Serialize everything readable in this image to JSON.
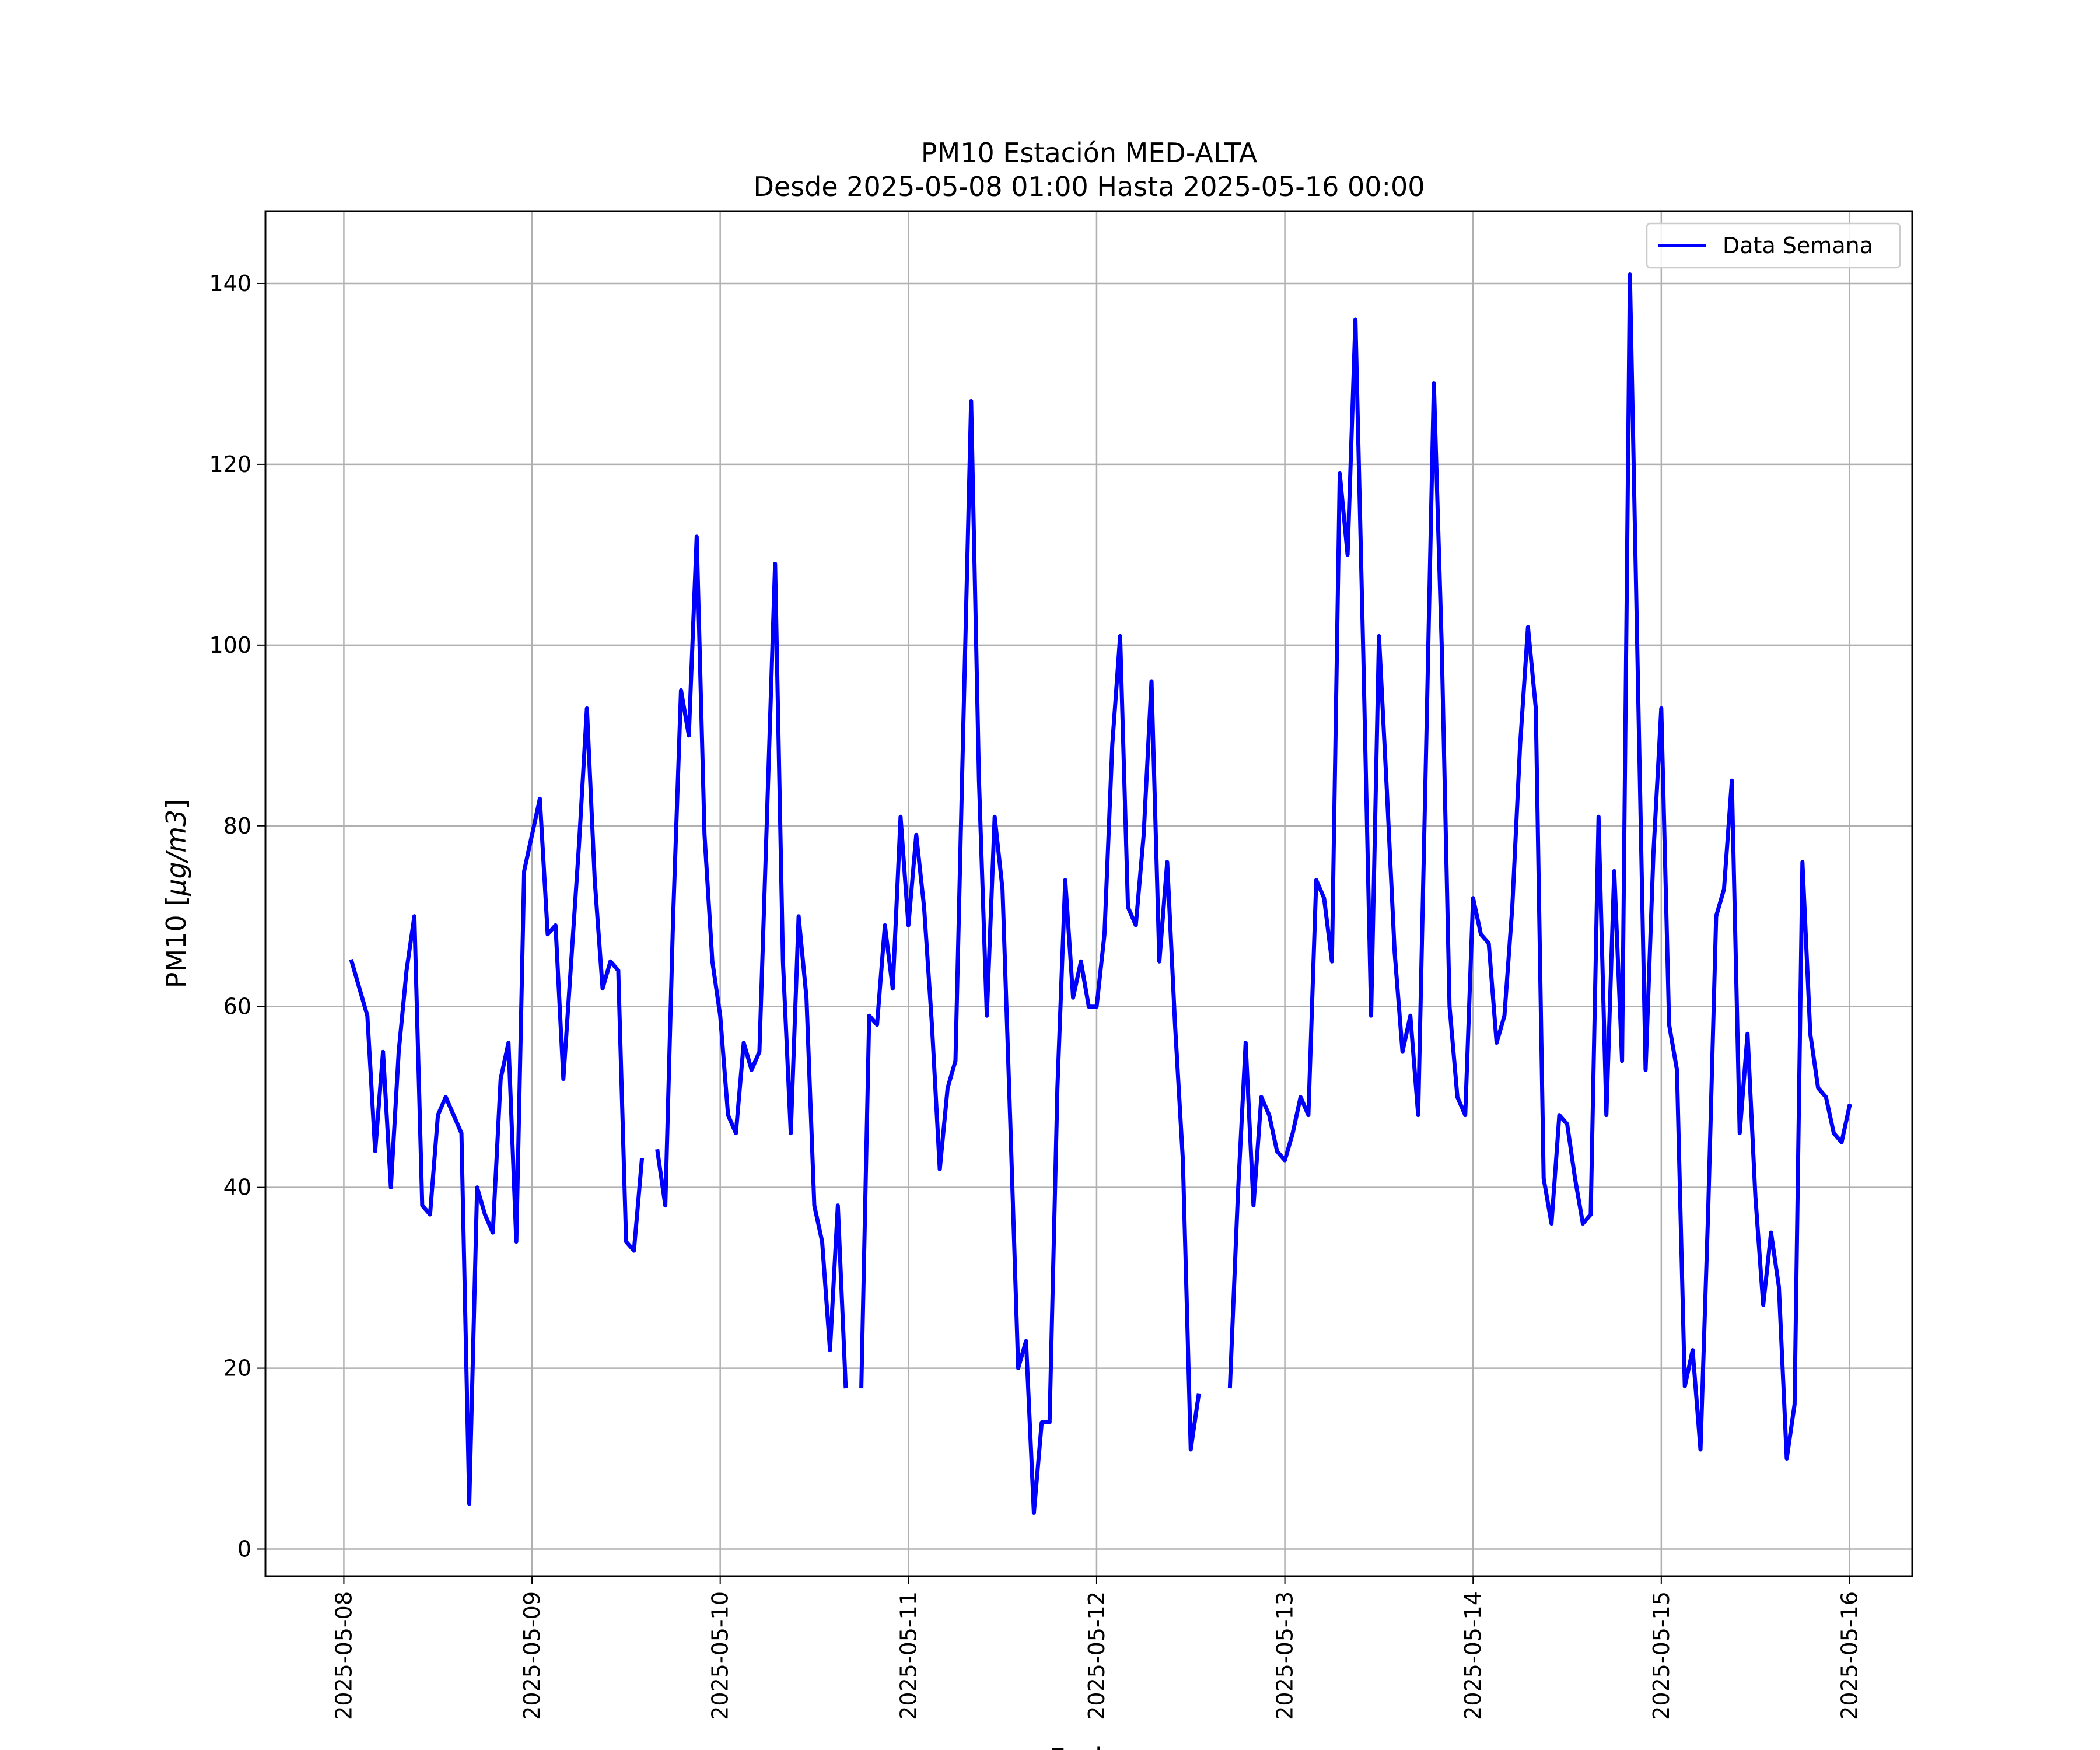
{
  "chart_data": {
    "type": "line",
    "title": "PM10 Estación MED-ALTA",
    "subtitle": "Desde 2025-05-08 01:00 Hasta 2025-05-16 00:00",
    "xlabel": "Fecha",
    "ylabel_prefix": "PM10 [",
    "ylabel_unit": "μg/m3",
    "ylabel_suffix": "]",
    "xlim": [
      "2025-05-07 14:00",
      "2025-05-16 08:00"
    ],
    "ylim": [
      -3,
      148
    ],
    "x_ticks": [
      "2025-05-08",
      "2025-05-09",
      "2025-05-10",
      "2025-05-11",
      "2025-05-12",
      "2025-05-13",
      "2025-05-14",
      "2025-05-15",
      "2025-05-16"
    ],
    "y_ticks": [
      0,
      20,
      40,
      60,
      80,
      100,
      120,
      140
    ],
    "grid": true,
    "legend_position": "top-right",
    "series": [
      {
        "name": "Data Semana",
        "color": "#0000ff",
        "x_start": "2025-05-08 01:00",
        "x_step_hours": 1,
        "values": [
          65,
          62,
          59,
          44,
          55,
          40,
          55,
          64,
          70,
          38,
          37,
          48,
          50,
          48,
          46,
          5,
          40,
          37,
          35,
          52,
          56,
          34,
          75,
          79,
          83,
          68,
          69,
          52,
          65,
          78,
          93,
          74,
          62,
          65,
          64,
          34,
          33,
          43,
          null,
          44,
          38,
          70,
          95,
          90,
          112,
          79,
          65,
          59,
          48,
          46,
          56,
          53,
          55,
          82,
          109,
          65,
          46,
          70,
          61,
          38,
          34,
          22,
          38,
          18,
          null,
          18,
          59,
          58,
          69,
          62,
          81,
          69,
          79,
          71,
          58,
          42,
          51,
          54,
          91,
          127,
          85,
          59,
          81,
          73,
          47,
          20,
          23,
          4,
          14,
          14,
          51,
          74,
          61,
          65,
          60,
          60,
          68,
          89,
          101,
          71,
          69,
          79,
          96,
          65,
          76,
          58,
          43,
          11,
          17,
          null,
          null,
          null,
          18,
          39,
          56,
          38,
          50,
          48,
          44,
          43,
          46,
          50,
          48,
          74,
          72,
          65,
          119,
          110,
          136,
          99,
          59,
          101,
          84,
          66,
          55,
          59,
          48,
          88,
          129,
          100,
          60,
          50,
          48,
          72,
          68,
          67,
          56,
          59,
          71,
          89,
          102,
          93,
          41,
          36,
          48,
          47,
          41,
          36,
          37,
          81,
          48,
          75,
          54,
          141,
          97,
          53,
          77,
          93,
          58,
          53,
          18,
          22,
          11,
          38,
          70,
          73,
          85,
          46,
          57,
          39,
          27,
          35,
          29,
          10,
          16,
          76,
          57,
          51,
          50,
          46,
          45,
          49
        ]
      }
    ]
  }
}
